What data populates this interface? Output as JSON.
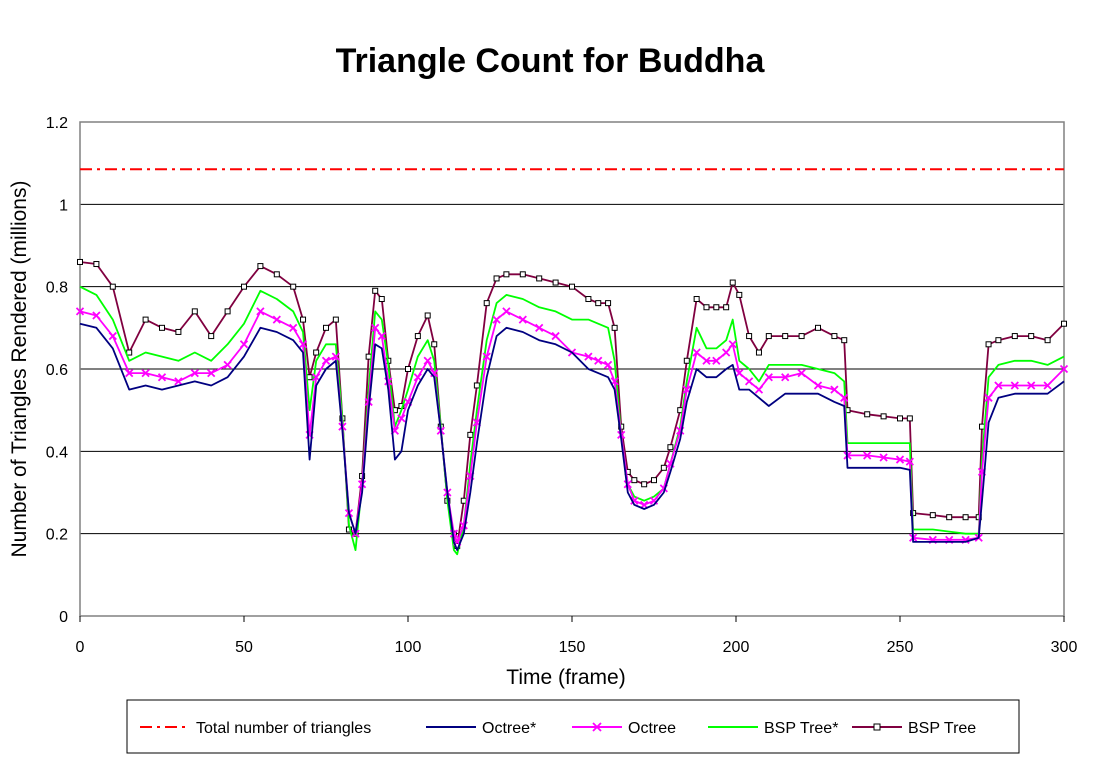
{
  "chart_data": {
    "type": "line",
    "title": "Triangle Count for Buddha",
    "xlabel": "Time (frame)",
    "ylabel": "Number of Triangles Rendered (millions)",
    "xlim": [
      0,
      300
    ],
    "ylim": [
      0,
      1.2
    ],
    "xticks": [
      "0",
      "50",
      "100",
      "150",
      "200",
      "250",
      "300"
    ],
    "yticks": [
      "0",
      "0.2",
      "0.4",
      "0.6",
      "0.8",
      "1",
      "1.2"
    ],
    "grid": "horizontal",
    "legend_position": "bottom",
    "x": [
      0,
      5,
      10,
      15,
      20,
      25,
      30,
      35,
      40,
      45,
      50,
      55,
      60,
      65,
      68,
      70,
      72,
      75,
      78,
      80,
      82,
      84,
      86,
      88,
      90,
      92,
      94,
      96,
      98,
      100,
      103,
      106,
      108,
      110,
      112,
      114,
      115,
      117,
      119,
      121,
      124,
      127,
      130,
      135,
      140,
      145,
      150,
      155,
      158,
      161,
      163,
      165,
      167,
      169,
      172,
      175,
      178,
      180,
      183,
      185,
      188,
      191,
      194,
      197,
      199,
      201,
      204,
      207,
      210,
      215,
      220,
      225,
      230,
      233,
      234,
      240,
      245,
      250,
      253,
      254,
      260,
      265,
      270,
      274,
      275,
      277,
      280,
      285,
      290,
      295,
      300
    ],
    "series": [
      {
        "name": "Total number of triangles",
        "color": "#ff0000",
        "style": "dash-dot",
        "values": [
          1.085,
          1.085,
          1.085,
          1.085,
          1.085,
          1.085,
          1.085,
          1.085,
          1.085,
          1.085,
          1.085,
          1.085,
          1.085,
          1.085,
          1.085,
          1.085,
          1.085,
          1.085,
          1.085,
          1.085,
          1.085,
          1.085,
          1.085,
          1.085,
          1.085,
          1.085,
          1.085,
          1.085,
          1.085,
          1.085,
          1.085,
          1.085,
          1.085,
          1.085,
          1.085,
          1.085,
          1.085,
          1.085,
          1.085,
          1.085,
          1.085,
          1.085,
          1.085,
          1.085,
          1.085,
          1.085,
          1.085,
          1.085,
          1.085,
          1.085,
          1.085,
          1.085,
          1.085,
          1.085,
          1.085,
          1.085,
          1.085,
          1.085,
          1.085,
          1.085,
          1.085,
          1.085,
          1.085,
          1.085,
          1.085,
          1.085,
          1.085,
          1.085,
          1.085,
          1.085,
          1.085,
          1.085,
          1.085,
          1.085,
          1.085,
          1.085,
          1.085,
          1.085,
          1.085,
          1.085,
          1.085,
          1.085,
          1.085,
          1.085,
          1.085,
          1.085,
          1.085,
          1.085,
          1.085,
          1.085,
          1.085
        ]
      },
      {
        "name": "Octree*",
        "color": "#000080",
        "style": "solid",
        "values": [
          0.71,
          0.7,
          0.65,
          0.55,
          0.56,
          0.55,
          0.56,
          0.57,
          0.56,
          0.58,
          0.63,
          0.7,
          0.69,
          0.67,
          0.64,
          0.38,
          0.56,
          0.6,
          0.62,
          0.45,
          0.25,
          0.2,
          0.3,
          0.5,
          0.66,
          0.65,
          0.55,
          0.38,
          0.4,
          0.5,
          0.56,
          0.6,
          0.58,
          0.45,
          0.3,
          0.18,
          0.16,
          0.2,
          0.3,
          0.42,
          0.58,
          0.68,
          0.7,
          0.69,
          0.67,
          0.66,
          0.64,
          0.6,
          0.59,
          0.58,
          0.55,
          0.43,
          0.3,
          0.27,
          0.26,
          0.27,
          0.3,
          0.35,
          0.43,
          0.52,
          0.6,
          0.58,
          0.58,
          0.6,
          0.61,
          0.55,
          0.55,
          0.53,
          0.51,
          0.54,
          0.54,
          0.54,
          0.52,
          0.51,
          0.36,
          0.36,
          0.36,
          0.36,
          0.355,
          0.18,
          0.18,
          0.18,
          0.18,
          0.19,
          0.28,
          0.47,
          0.53,
          0.54,
          0.54,
          0.54,
          0.57
        ]
      },
      {
        "name": "Octree",
        "color": "#ff00ff",
        "style": "solid-x",
        "values": [
          0.74,
          0.73,
          0.68,
          0.59,
          0.59,
          0.58,
          0.57,
          0.59,
          0.59,
          0.61,
          0.66,
          0.74,
          0.72,
          0.7,
          0.66,
          0.44,
          0.58,
          0.62,
          0.63,
          0.46,
          0.25,
          0.2,
          0.32,
          0.52,
          0.7,
          0.68,
          0.57,
          0.45,
          0.48,
          0.52,
          0.58,
          0.62,
          0.59,
          0.45,
          0.3,
          0.2,
          0.18,
          0.22,
          0.34,
          0.47,
          0.63,
          0.72,
          0.74,
          0.72,
          0.7,
          0.68,
          0.64,
          0.63,
          0.62,
          0.61,
          0.57,
          0.44,
          0.32,
          0.28,
          0.27,
          0.28,
          0.31,
          0.37,
          0.45,
          0.55,
          0.64,
          0.62,
          0.62,
          0.64,
          0.66,
          0.59,
          0.57,
          0.55,
          0.58,
          0.58,
          0.59,
          0.56,
          0.55,
          0.53,
          0.39,
          0.39,
          0.385,
          0.38,
          0.375,
          0.19,
          0.185,
          0.185,
          0.185,
          0.19,
          0.35,
          0.53,
          0.56,
          0.56,
          0.56,
          0.56,
          0.6
        ]
      },
      {
        "name": "BSP Tree*",
        "color": "#00ff00",
        "style": "solid",
        "values": [
          0.8,
          0.78,
          0.72,
          0.62,
          0.64,
          0.63,
          0.62,
          0.64,
          0.62,
          0.66,
          0.71,
          0.79,
          0.77,
          0.74,
          0.69,
          0.5,
          0.62,
          0.66,
          0.66,
          0.48,
          0.22,
          0.16,
          0.32,
          0.55,
          0.74,
          0.72,
          0.61,
          0.46,
          0.5,
          0.55,
          0.63,
          0.67,
          0.62,
          0.46,
          0.28,
          0.16,
          0.15,
          0.22,
          0.37,
          0.5,
          0.67,
          0.76,
          0.78,
          0.77,
          0.75,
          0.74,
          0.72,
          0.72,
          0.71,
          0.7,
          0.62,
          0.44,
          0.32,
          0.29,
          0.28,
          0.29,
          0.31,
          0.37,
          0.46,
          0.57,
          0.7,
          0.65,
          0.65,
          0.67,
          0.72,
          0.62,
          0.6,
          0.57,
          0.61,
          0.61,
          0.61,
          0.6,
          0.59,
          0.57,
          0.42,
          0.42,
          0.42,
          0.42,
          0.42,
          0.21,
          0.21,
          0.205,
          0.2,
          0.2,
          0.38,
          0.58,
          0.61,
          0.62,
          0.62,
          0.61,
          0.63
        ]
      },
      {
        "name": "BSP Tree",
        "color": "#800040",
        "style": "solid-square",
        "values": [
          0.86,
          0.855,
          0.8,
          0.64,
          0.72,
          0.7,
          0.69,
          0.74,
          0.68,
          0.74,
          0.8,
          0.85,
          0.83,
          0.8,
          0.72,
          0.58,
          0.64,
          0.7,
          0.72,
          0.48,
          0.21,
          0.2,
          0.34,
          0.63,
          0.79,
          0.77,
          0.62,
          0.5,
          0.51,
          0.6,
          0.68,
          0.73,
          0.66,
          0.46,
          0.28,
          0.2,
          0.17,
          0.28,
          0.44,
          0.56,
          0.76,
          0.82,
          0.83,
          0.83,
          0.82,
          0.81,
          0.8,
          0.77,
          0.76,
          0.76,
          0.7,
          0.46,
          0.35,
          0.33,
          0.32,
          0.33,
          0.36,
          0.41,
          0.5,
          0.62,
          0.77,
          0.75,
          0.75,
          0.75,
          0.81,
          0.78,
          0.68,
          0.64,
          0.68,
          0.68,
          0.68,
          0.7,
          0.68,
          0.67,
          0.5,
          0.49,
          0.485,
          0.48,
          0.48,
          0.25,
          0.245,
          0.24,
          0.24,
          0.24,
          0.46,
          0.66,
          0.67,
          0.68,
          0.68,
          0.67,
          0.71
        ]
      }
    ]
  }
}
